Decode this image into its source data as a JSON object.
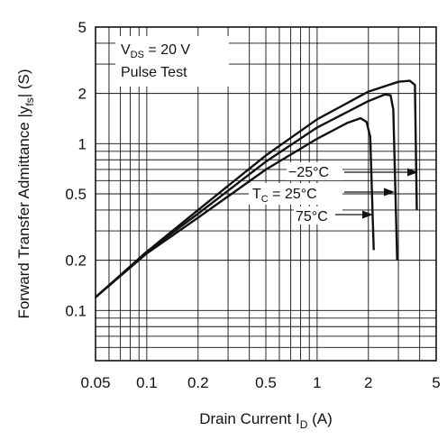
{
  "chart_data": {
    "type": "line",
    "scale": {
      "x": "log",
      "y": "log"
    },
    "xlim": [
      0.05,
      5
    ],
    "ylim": [
      0.05,
      5
    ],
    "x_ticks": [
      {
        "v": 0.05,
        "label": "0.05"
      },
      {
        "v": 0.1,
        "label": "0.1"
      },
      {
        "v": 0.2,
        "label": "0.2"
      },
      {
        "v": 0.5,
        "label": "0.5"
      },
      {
        "v": 1,
        "label": "1"
      },
      {
        "v": 2,
        "label": "2"
      },
      {
        "v": 5,
        "label": "5"
      }
    ],
    "y_ticks": [
      {
        "v": 0.1,
        "label": "0.1"
      },
      {
        "v": 0.2,
        "label": "0.2"
      },
      {
        "v": 0.5,
        "label": "0.5"
      },
      {
        "v": 1,
        "label": "1"
      },
      {
        "v": 2,
        "label": "2"
      },
      {
        "v": 5,
        "label": "5"
      }
    ],
    "grid": true,
    "xlabel": {
      "main": "Drain Current  I",
      "sub": "D",
      "unit": "  (A)"
    },
    "ylabel": {
      "main": "Forward Transfer Admittance  |y",
      "sub": "fs",
      "unit": "|  (S)"
    },
    "conditions": {
      "line1": {
        "main": "V",
        "sub": "DS",
        "rest": " = 20 V"
      },
      "line2": "Pulse Test"
    },
    "tc_label": {
      "main": "T",
      "sub": "C",
      "rest": " = 25°C"
    },
    "series": [
      {
        "name": "−25°C",
        "points": [
          [
            0.05,
            0.12
          ],
          [
            0.1,
            0.225
          ],
          [
            0.2,
            0.4
          ],
          [
            0.5,
            0.85
          ],
          [
            1,
            1.4
          ],
          [
            2,
            2.05
          ],
          [
            3,
            2.35
          ],
          [
            3.5,
            2.38
          ],
          [
            3.75,
            2.25
          ],
          [
            3.85,
            0.4
          ]
        ]
      },
      {
        "name": "25°C",
        "points": [
          [
            0.05,
            0.12
          ],
          [
            0.1,
            0.225
          ],
          [
            0.2,
            0.38
          ],
          [
            0.5,
            0.78
          ],
          [
            1,
            1.25
          ],
          [
            2,
            1.8
          ],
          [
            2.5,
            1.97
          ],
          [
            2.7,
            1.95
          ],
          [
            2.8,
            1.6
          ],
          [
            2.95,
            0.2
          ]
        ]
      },
      {
        "name": "75°C",
        "points": [
          [
            0.05,
            0.12
          ],
          [
            0.1,
            0.22
          ],
          [
            0.2,
            0.36
          ],
          [
            0.5,
            0.7
          ],
          [
            1,
            1.07
          ],
          [
            1.5,
            1.33
          ],
          [
            1.8,
            1.42
          ],
          [
            1.95,
            1.35
          ],
          [
            2.05,
            1.1
          ],
          [
            2.15,
            0.23
          ]
        ]
      }
    ]
  }
}
